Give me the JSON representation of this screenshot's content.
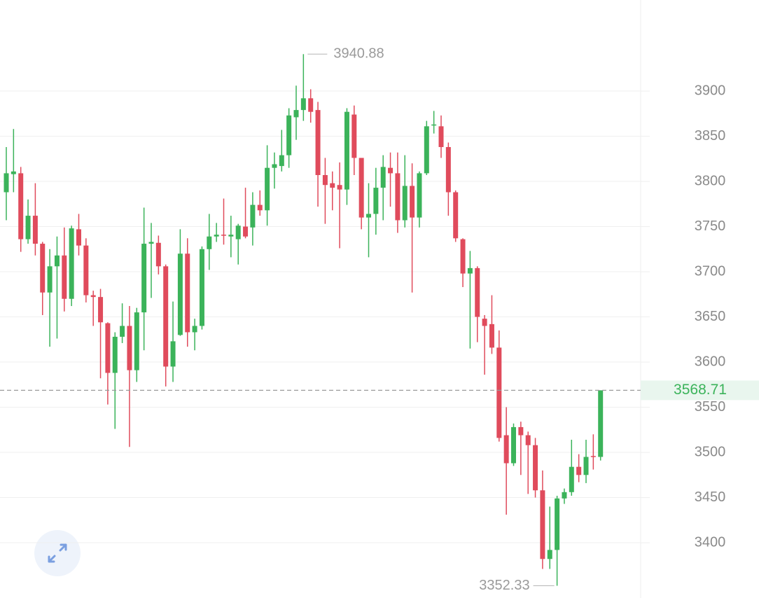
{
  "chart_data": {
    "type": "candlestick",
    "open": [
      3788,
      3808,
      3809,
      3736,
      3762,
      3731,
      3677,
      3706,
      3718,
      3670,
      3747,
      3729,
      3674,
      3672,
      3643,
      3588,
      3628,
      3640,
      3591,
      3655,
      3731,
      3732,
      3706,
      3595,
      3630,
      3720,
      3633,
      3640,
      3725,
      3739,
      3741,
      3739,
      3736,
      3750,
      3749,
      3774,
      3768,
      3815,
      3817,
      3829,
      3871,
      3879,
      3892,
      3879,
      3807,
      3798,
      3796,
      3791,
      3874,
      3826,
      3760,
      3764,
      3793,
      3815,
      3809,
      3757,
      3795,
      3760,
      3809,
      3862,
      3861,
      3838,
      3788,
      3736,
      3698,
      3704,
      3648,
      3642,
      3616,
      3519,
      3488,
      3528,
      3519,
      3508,
      3458,
      3382,
      3392,
      3449,
      3456,
      3484,
      3475,
      3496,
      3495
    ],
    "high": [
      3838,
      3858,
      3816,
      3780,
      3798,
      3733,
      3725,
      3739,
      3749,
      3751,
      3764,
      3737,
      3679,
      3681,
      3644,
      3633,
      3665,
      3662,
      3660,
      3771,
      3754,
      3740,
      3708,
      3667,
      3747,
      3737,
      3648,
      3728,
      3764,
      3754,
      3781,
      3762,
      3753,
      3793,
      3788,
      3790,
      3840,
      3832,
      3857,
      3881,
      3906,
      3940.88,
      3902,
      3888,
      3826,
      3811,
      3821,
      3881,
      3884,
      3826,
      3798,
      3815,
      3829,
      3832,
      3832,
      3829,
      3820,
      3811,
      3867,
      3878,
      3873,
      3843,
      3790,
      3737,
      3723,
      3706,
      3652,
      3674,
      3635,
      3550,
      3532,
      3534,
      3523,
      3516,
      3480,
      3440,
      3452,
      3460,
      3514,
      3498,
      3514,
      3520,
      3568.71
    ],
    "low": [
      3757,
      3788,
      3722,
      3731,
      3718,
      3652,
      3617,
      3626,
      3656,
      3662,
      3718,
      3666,
      3640,
      3582,
      3553,
      3526,
      3621,
      3506,
      3578,
      3613,
      3671,
      3697,
      3573,
      3578,
      3629,
      3617,
      3613,
      3636,
      3702,
      3733,
      3730,
      3716,
      3708,
      3737,
      3729,
      3762,
      3751,
      3792,
      3811,
      3815,
      3846,
      3867,
      3865,
      3772,
      3753,
      3768,
      3726,
      3774,
      3807,
      3747,
      3716,
      3741,
      3757,
      3772,
      3743,
      3749,
      3677,
      3749,
      3807,
      3853,
      3826,
      3762,
      3733,
      3683,
      3615,
      3622,
      3586,
      3609,
      3512,
      3431,
      3485,
      3475,
      3454,
      3450,
      3371,
      3371,
      3352.33,
      3443,
      3452,
      3467,
      3466,
      3481,
      3491
    ],
    "close": [
      3809,
      3811,
      3736,
      3762,
      3731,
      3677,
      3706,
      3718,
      3670,
      3748,
      3729,
      3674,
      3672,
      3644,
      3588,
      3628,
      3640,
      3591,
      3655,
      3731,
      3733,
      3706,
      3595,
      3623,
      3720,
      3633,
      3640,
      3725,
      3739,
      3741,
      3740,
      3741,
      3751,
      3739,
      3774,
      3768,
      3815,
      3819,
      3829,
      3873,
      3879,
      3892,
      3877,
      3807,
      3796,
      3793,
      3791,
      3877,
      3826,
      3760,
      3764,
      3793,
      3816,
      3809,
      3757,
      3795,
      3760,
      3809,
      3861,
      3863,
      3838,
      3788,
      3737,
      3698,
      3704,
      3650,
      3640,
      3616,
      3516,
      3488,
      3528,
      3519,
      3508,
      3458,
      3382,
      3392,
      3449,
      3456,
      3484,
      3475,
      3495,
      3495,
      3568.71
    ],
    "up_color": "#3bb35a",
    "down_color": "#e04b5c",
    "ylim": [
      3338.8,
      4000.8
    ],
    "yticks": [
      3400,
      3450,
      3500,
      3550,
      3600,
      3650,
      3700,
      3750,
      3800,
      3850,
      3900
    ],
    "grid": true,
    "max_label": 3940.88,
    "min_label": 3352.33,
    "last_price": 3568.71
  }
}
